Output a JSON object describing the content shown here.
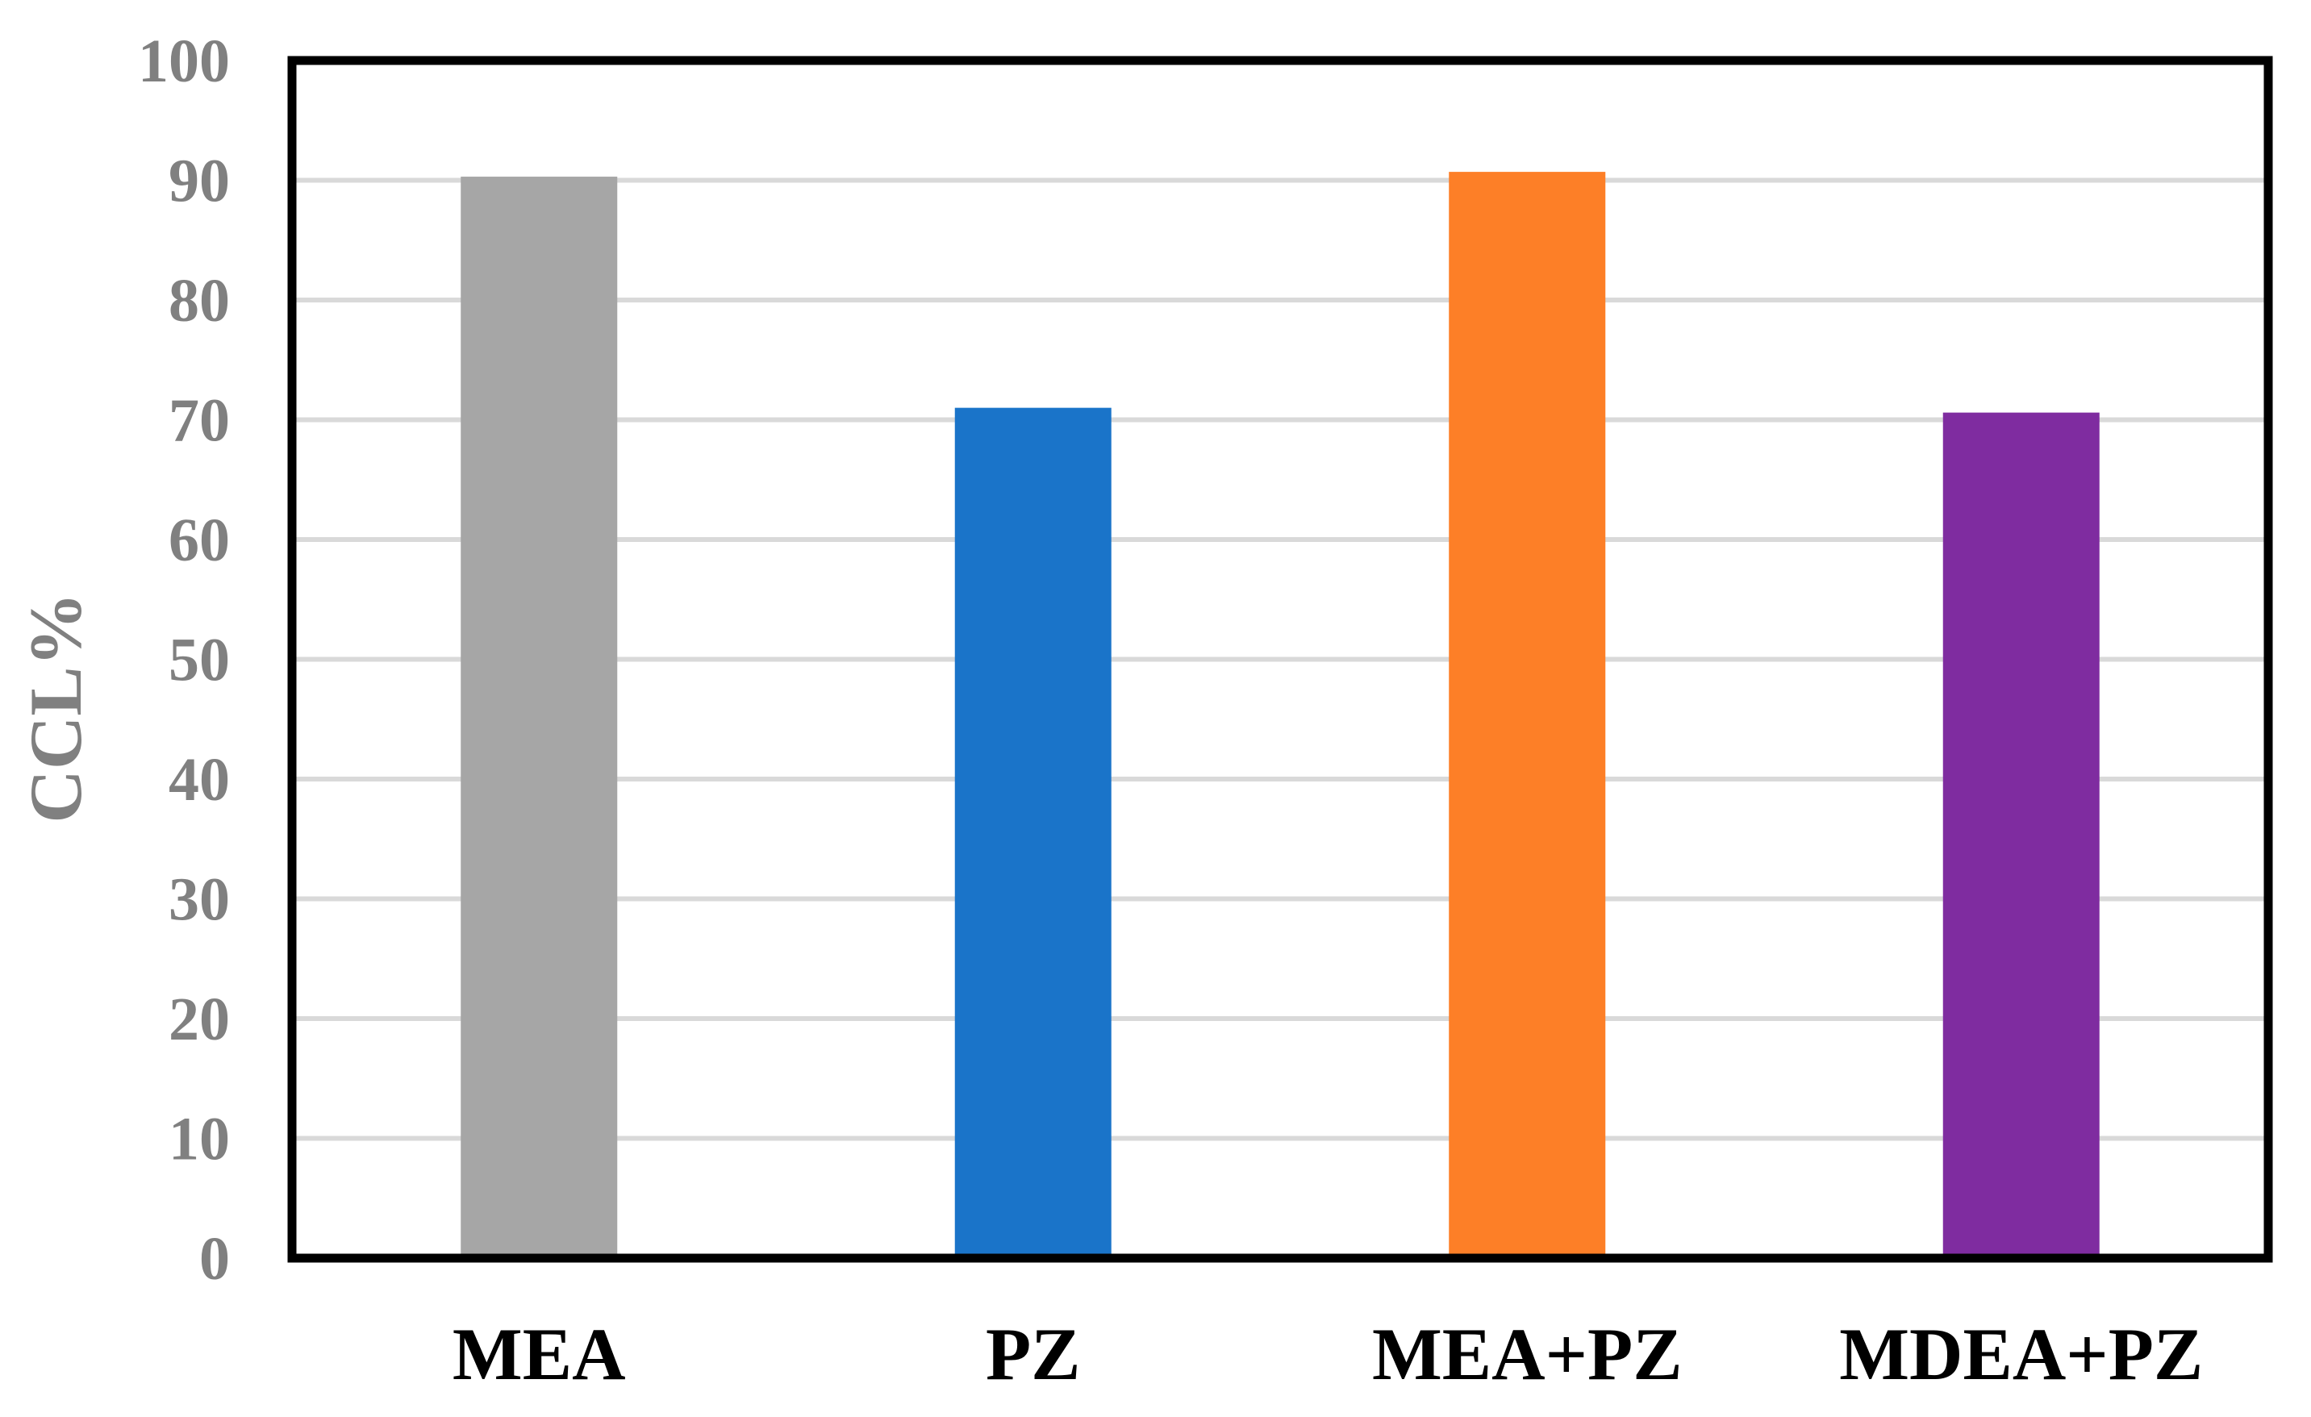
{
  "chart_data": {
    "type": "bar",
    "categories": [
      "MEA",
      "PZ",
      "MEA+PZ",
      "MDEA+PZ"
    ],
    "values": [
      90.3,
      71.0,
      90.7,
      70.6
    ],
    "title": "",
    "xlabel": "",
    "ylabel": "CCL%",
    "ylim": [
      0,
      100
    ],
    "yticks": [
      0,
      10,
      20,
      30,
      40,
      50,
      60,
      70,
      80,
      90,
      100
    ],
    "ytick_labels": [
      "0",
      "10",
      "20",
      "30",
      "40",
      "50",
      "60",
      "70",
      "80",
      "90",
      "100"
    ],
    "bar_colors": [
      "#a6a6a6",
      "#1a74c9",
      "#fd7f27",
      "#7f2ca0"
    ],
    "grid": true,
    "legend": "none"
  }
}
